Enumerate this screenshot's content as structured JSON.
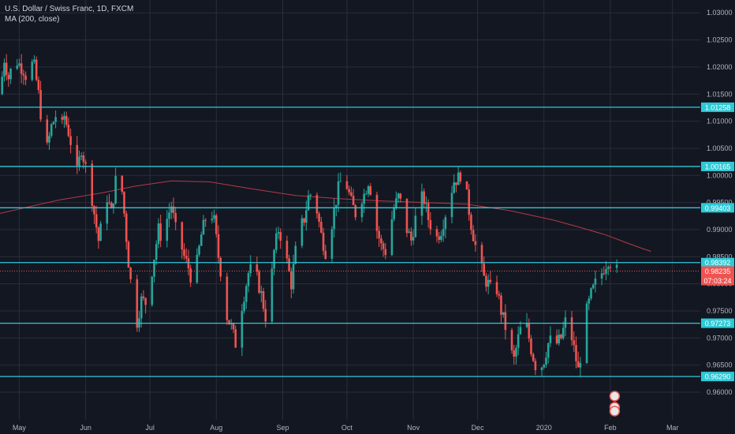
{
  "legend": {
    "symbol_line": "U.S. Dollar / Swiss Franc, 1D, FXCM",
    "indicator_line": "MA (200, close)"
  },
  "colors": {
    "background": "#131722",
    "grid": "#2a2e39",
    "up": "#26a69a",
    "down": "#ef5350",
    "level": "#2ec9d6",
    "ma": "#b33b44",
    "price_tag": "#ef5350",
    "axis_text": "#b2b5be"
  },
  "chart_data": {
    "type": "candlestick",
    "y_axis": {
      "min": 0.9552,
      "max": 1.0312,
      "ticks": [
        "1.03000",
        "1.02500",
        "1.02000",
        "1.01500",
        "1.01000",
        "1.00500",
        "1.00000",
        "0.99500",
        "0.99000",
        "0.98500",
        "0.98000",
        "0.97500",
        "0.97000",
        "0.96500",
        "0.96000"
      ],
      "side": "right"
    },
    "x_axis": {
      "labels": [
        {
          "text": "May",
          "day": 1
        },
        {
          "text": "Jun",
          "day": 32
        },
        {
          "text": "Jul",
          "day": 62
        },
        {
          "text": "Aug",
          "day": 93
        },
        {
          "text": "Sep",
          "day": 124
        },
        {
          "text": "Oct",
          "day": 154
        },
        {
          "text": "Nov",
          "day": 185
        },
        {
          "text": "Dec",
          "day": 215
        },
        {
          "text": "2020",
          "day": 246
        },
        {
          "text": "Feb",
          "day": 277
        },
        {
          "text": "Mar",
          "day": 306
        }
      ],
      "first_day": -8,
      "last_day": 319
    },
    "horizontal_levels": [
      {
        "value": 1.01258,
        "label": "1.01258"
      },
      {
        "value": 1.00165,
        "label": "1.00165"
      },
      {
        "value": 0.99403,
        "label": "0.99403"
      },
      {
        "value": 0.98392,
        "label": "0.98392"
      },
      {
        "value": 0.97273,
        "label": "0.97273"
      },
      {
        "value": 0.9629,
        "label": "0.96290"
      }
    ],
    "last_price": {
      "value": 0.98235,
      "label": "0.98235",
      "countdown": "07:03:24"
    },
    "moving_average": {
      "name": "MA (200, close)",
      "points": [
        [
          -8,
          0.993
        ],
        [
          20,
          0.9955
        ],
        [
          40,
          0.9968
        ],
        [
          55,
          0.998
        ],
        [
          72,
          0.999
        ],
        [
          90,
          0.9988
        ],
        [
          110,
          0.9975
        ],
        [
          130,
          0.9963
        ],
        [
          150,
          0.9957
        ],
        [
          170,
          0.9953
        ],
        [
          190,
          0.995
        ],
        [
          210,
          0.9947
        ],
        [
          230,
          0.9935
        ],
        [
          250,
          0.9918
        ],
        [
          262,
          0.9905
        ],
        [
          275,
          0.989
        ],
        [
          285,
          0.9875
        ],
        [
          292,
          0.9865
        ],
        [
          296,
          0.986
        ]
      ]
    },
    "close_path": [
      [
        -8,
        1.015
      ],
      [
        -6,
        1.0215
      ],
      [
        -4,
        1.018
      ],
      [
        -2,
        1.0205
      ],
      [
        0,
        1.021
      ],
      [
        3,
        1.0195
      ],
      [
        5,
        1.0175
      ],
      [
        7,
        1.0205
      ],
      [
        8,
        1.02
      ],
      [
        10,
        1.015
      ],
      [
        12,
        1.008
      ],
      [
        14,
        1.005
      ],
      [
        16,
        1.009
      ],
      [
        18,
        1.011
      ],
      [
        20,
        1.007
      ],
      [
        22,
        1.011
      ],
      [
        24,
        1.008
      ],
      [
        26,
        1.0045
      ],
      [
        28,
        1.0005
      ],
      [
        30,
        1.005
      ],
      [
        32,
        1.0015
      ],
      [
        34,
        0.9985
      ],
      [
        36,
        0.993
      ],
      [
        38,
        0.988
      ],
      [
        40,
        0.992
      ],
      [
        42,
        0.996
      ],
      [
        44,
        0.993
      ],
      [
        46,
        0.999
      ],
      [
        48,
        1.001
      ],
      [
        50,
        0.993
      ],
      [
        52,
        0.984
      ],
      [
        54,
        0.977
      ],
      [
        56,
        0.973
      ],
      [
        58,
        0.977
      ],
      [
        60,
        0.9765
      ],
      [
        62,
        0.98
      ],
      [
        64,
        0.985
      ],
      [
        66,
        0.99
      ],
      [
        68,
        0.988
      ],
      [
        70,
        0.992
      ],
      [
        72,
        0.9945
      ],
      [
        74,
        0.99
      ],
      [
        76,
        0.988
      ],
      [
        78,
        0.985
      ],
      [
        80,
        0.983
      ],
      [
        82,
        0.98
      ],
      [
        84,
        0.984
      ],
      [
        86,
        0.989
      ],
      [
        88,
        0.992
      ],
      [
        90,
        0.994
      ],
      [
        92,
        0.9915
      ],
      [
        94,
        0.985
      ],
      [
        96,
        0.98
      ],
      [
        98,
        0.974
      ],
      [
        100,
        0.972
      ],
      [
        102,
        0.969
      ],
      [
        104,
        0.974
      ],
      [
        106,
        0.978
      ],
      [
        108,
        0.982
      ],
      [
        110,
        0.983
      ],
      [
        112,
        0.981
      ],
      [
        114,
        0.978
      ],
      [
        116,
        0.974
      ],
      [
        118,
        0.978
      ],
      [
        120,
        0.986
      ],
      [
        122,
        0.99
      ],
      [
        124,
        0.988
      ],
      [
        126,
        0.984
      ],
      [
        128,
        0.98
      ],
      [
        130,
        0.986
      ],
      [
        132,
        0.99
      ],
      [
        134,
        0.992
      ],
      [
        136,
        0.996
      ],
      [
        138,
        0.997
      ],
      [
        140,
        0.9935
      ],
      [
        142,
        0.989
      ],
      [
        144,
        0.986
      ],
      [
        146,
        0.989
      ],
      [
        148,
        0.9935
      ],
      [
        150,
        0.9975
      ],
      [
        152,
        1.0
      ],
      [
        154,
        0.998
      ],
      [
        156,
        0.995
      ],
      [
        158,
        0.993
      ],
      [
        160,
        0.9955
      ],
      [
        162,
        0.9965
      ],
      [
        164,
        0.999
      ],
      [
        166,
        0.996
      ],
      [
        168,
        0.99
      ],
      [
        170,
        0.987
      ],
      [
        172,
        0.986
      ],
      [
        174,
        0.99
      ],
      [
        176,
        0.994
      ],
      [
        178,
        0.996
      ],
      [
        180,
        0.994
      ],
      [
        182,
        0.99
      ],
      [
        184,
        0.988
      ],
      [
        186,
        0.992
      ],
      [
        188,
        0.996
      ],
      [
        190,
        0.9955
      ],
      [
        192,
        0.992
      ],
      [
        194,
        0.99
      ],
      [
        196,
        0.9885
      ],
      [
        198,
        0.99
      ],
      [
        200,
        0.993
      ],
      [
        202,
        0.996
      ],
      [
        204,
        0.999
      ],
      [
        206,
        0.9995
      ],
      [
        208,
        1.001
      ],
      [
        210,
        0.996
      ],
      [
        212,
        0.991
      ],
      [
        214,
        0.987
      ],
      [
        216,
        0.984
      ],
      [
        218,
        0.981
      ],
      [
        220,
        0.98
      ],
      [
        222,
        0.978
      ],
      [
        224,
        0.979
      ],
      [
        226,
        0.975
      ],
      [
        228,
        0.972
      ],
      [
        230,
        0.968
      ],
      [
        232,
        0.966
      ],
      [
        234,
        0.97
      ],
      [
        236,
        0.973
      ],
      [
        238,
        0.972
      ],
      [
        240,
        0.968
      ],
      [
        242,
        0.965
      ],
      [
        244,
        0.964
      ],
      [
        246,
        0.966
      ],
      [
        248,
        0.969
      ],
      [
        250,
        0.97
      ],
      [
        252,
        0.969
      ],
      [
        254,
        0.97
      ],
      [
        256,
        0.973
      ],
      [
        258,
        0.972
      ],
      [
        260,
        0.968
      ],
      [
        262,
        0.964
      ],
      [
        264,
        0.969
      ],
      [
        266,
        0.975
      ],
      [
        268,
        0.978
      ],
      [
        270,
        0.98
      ],
      [
        272,
        0.981
      ],
      [
        274,
        0.983
      ],
      [
        276,
        0.9845
      ],
      [
        278,
        0.9835
      ],
      [
        280,
        0.9824
      ]
    ]
  }
}
